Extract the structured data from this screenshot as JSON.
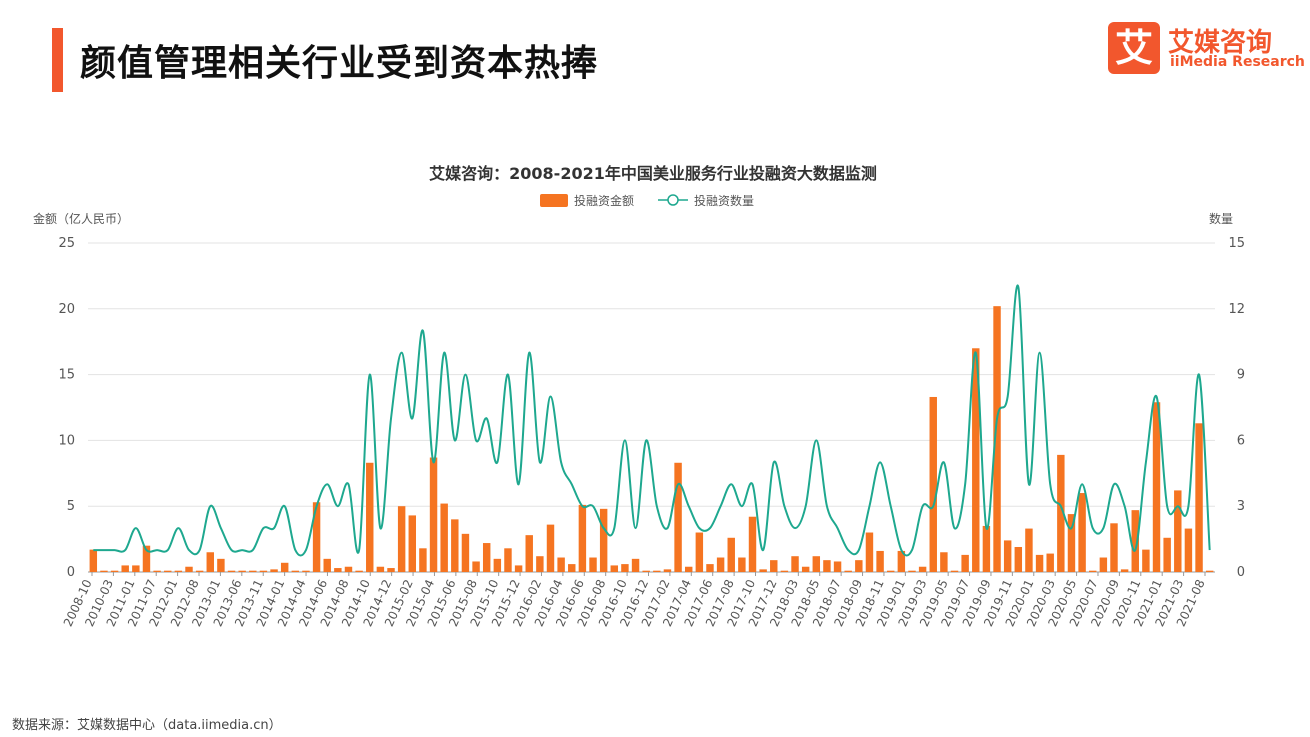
{
  "header": {
    "title": "颜值管理相关行业受到资本热捧",
    "logo_mark": "艾",
    "logo_cn": "艾媒咨询",
    "logo_en": "iiMedia Research"
  },
  "footer": {
    "source": "数据来源：艾媒数据中心（data.iimedia.cn）"
  },
  "colors": {
    "bar": "#f57421",
    "line": "#1ea88f",
    "accent": "#f2572d"
  },
  "chart_data": {
    "type": "bar",
    "title": "艾媒咨询：2008-2021年中国美业服务行业投融资大数据监测",
    "legend": {
      "placement": "top-center",
      "bar_label": "投融资金额",
      "line_label": "投融资数量"
    },
    "y_left_label": "金额（亿人民币）",
    "y_right_label": "数量",
    "y_left_range": [
      0,
      25
    ],
    "y_left_ticks": [
      0,
      5,
      10,
      15,
      20,
      25
    ],
    "y_right_range": [
      0,
      15
    ],
    "y_right_ticks": [
      0,
      3,
      6,
      9,
      12,
      15
    ],
    "grid": true,
    "x_tick_labels": [
      "2008-10",
      "2010-03",
      "2011-01",
      "2011-07",
      "2012-01",
      "2012-08",
      "2013-01",
      "2013-06",
      "2013-11",
      "2014-01",
      "2014-04",
      "2014-06",
      "2014-08",
      "2014-10",
      "2014-12",
      "2015-02",
      "2015-04",
      "2015-06",
      "2015-08",
      "2015-10",
      "2015-12",
      "2016-02",
      "2016-04",
      "2016-06",
      "2016-08",
      "2016-10",
      "2016-12",
      "2017-02",
      "2017-04",
      "2017-06",
      "2017-08",
      "2017-10",
      "2017-12",
      "2018-03",
      "2018-05",
      "2018-07",
      "2018-09",
      "2018-11",
      "2019-01",
      "2019-03",
      "2019-05",
      "2019-07",
      "2019-09",
      "2019-11",
      "2020-01",
      "2020-03",
      "2020-05",
      "2020-07",
      "2020-09",
      "2020-11",
      "2021-01",
      "2021-03",
      "2021-08"
    ],
    "series": [
      {
        "name": "投融资金额",
        "kind": "bar",
        "values": [
          1.7,
          0.1,
          0.1,
          0.5,
          0.5,
          2.0,
          0.1,
          0.1,
          0.1,
          0.4,
          0.1,
          1.5,
          1.0,
          0.1,
          0.1,
          0.1,
          0.1,
          0.2,
          0.7,
          0.1,
          0.1,
          5.3,
          1.0,
          0.3,
          0.4,
          0.1,
          8.3,
          0.4,
          0.3,
          5.0,
          4.3,
          1.8,
          8.7,
          5.2,
          4.0,
          2.9,
          0.8,
          2.2,
          1.0,
          1.8,
          0.5,
          2.8,
          1.2,
          3.6,
          1.1,
          0.6,
          5.1,
          1.1,
          4.8,
          0.5,
          0.6,
          1.0,
          0.1,
          0.1,
          0.2,
          8.3,
          0.4,
          3.0,
          0.6,
          1.1,
          2.6,
          1.1,
          4.2,
          0.2,
          0.9,
          0.1,
          1.2,
          0.4,
          1.2,
          0.9,
          0.8,
          0.1,
          0.9,
          3.0,
          1.6,
          0.1,
          1.6,
          0.1,
          0.4,
          13.3,
          1.5,
          0.1,
          1.3,
          17.0,
          3.5,
          20.2,
          2.4,
          1.9,
          3.3,
          1.3,
          1.4,
          8.9,
          4.4,
          6.0,
          0.1,
          1.1,
          3.7,
          0.2,
          4.7,
          1.7,
          12.9,
          2.6,
          6.2,
          3.3,
          11.3,
          0.1
        ]
      },
      {
        "name": "投融资数量",
        "kind": "line",
        "values": [
          1,
          1,
          1,
          1,
          2,
          1,
          1,
          1,
          2,
          1,
          1,
          3,
          2,
          1,
          1,
          1,
          2,
          2,
          3,
          1,
          1,
          3,
          4,
          3,
          4,
          1,
          9,
          2,
          7,
          10,
          7,
          11,
          5,
          10,
          6,
          9,
          6,
          7,
          5,
          9,
          4,
          10,
          5,
          8,
          5,
          4,
          3,
          3,
          2,
          2,
          6,
          2,
          6,
          3,
          2,
          4,
          3,
          2,
          2,
          3,
          4,
          3,
          4,
          1,
          5,
          3,
          2,
          3,
          6,
          3,
          2,
          1,
          1,
          3,
          5,
          3,
          1,
          1,
          3,
          3,
          5,
          2,
          4,
          10,
          2,
          7,
          8,
          13,
          4,
          10,
          4,
          3,
          2,
          4,
          2,
          2,
          4,
          3,
          1,
          5,
          8,
          3,
          3,
          3,
          9,
          1
        ]
      }
    ]
  }
}
